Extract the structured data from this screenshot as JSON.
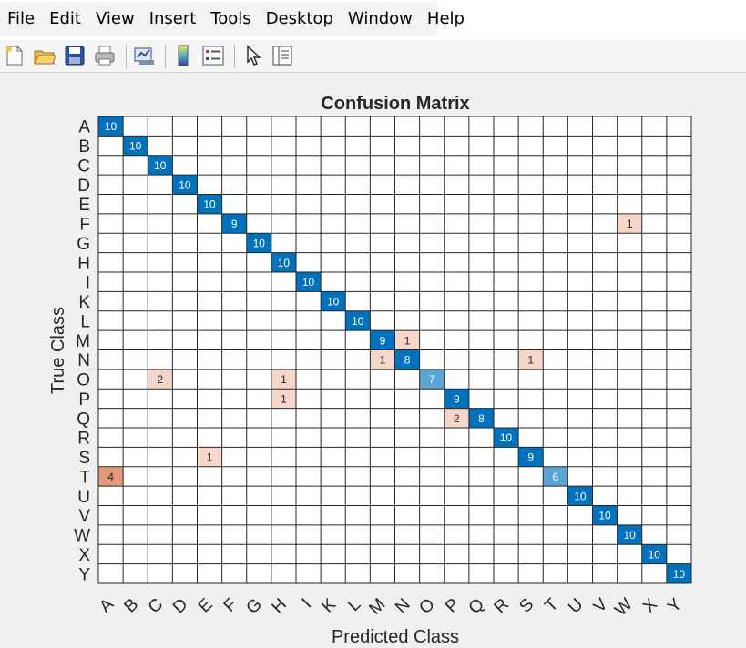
{
  "menu": [
    "File",
    "Edit",
    "View",
    "Insert",
    "Tools",
    "Desktop",
    "Window",
    "Help"
  ],
  "toolbar": {
    "groups": [
      [
        "new-figure-icon",
        "open-file-icon",
        "save-icon",
        "print-icon"
      ],
      [
        "link-plot-icon"
      ],
      [
        "colorbar-icon",
        "legend-icon"
      ],
      [
        "edit-plot-pointer-icon",
        "property-inspector-icon"
      ]
    ]
  },
  "colors": {
    "diagonal_strong": "#0072bd",
    "diagonal_light": "#5aa5d8",
    "offdiag_light": "#f7d6ca",
    "offdiag_strong": "#e39a78",
    "grid": "#262626"
  },
  "chart_data": {
    "type": "heatmap",
    "title": "Confusion Matrix",
    "xlabel": "Predicted Class",
    "ylabel": "True Class",
    "classes": [
      "A",
      "B",
      "C",
      "D",
      "E",
      "F",
      "G",
      "H",
      "I",
      "K",
      "L",
      "M",
      "N",
      "O",
      "P",
      "Q",
      "R",
      "S",
      "T",
      "U",
      "V",
      "W",
      "X",
      "Y"
    ],
    "cells": [
      {
        "true": "A",
        "pred": "A",
        "value": 10
      },
      {
        "true": "B",
        "pred": "B",
        "value": 10
      },
      {
        "true": "C",
        "pred": "C",
        "value": 10
      },
      {
        "true": "D",
        "pred": "D",
        "value": 10
      },
      {
        "true": "E",
        "pred": "E",
        "value": 10
      },
      {
        "true": "F",
        "pred": "F",
        "value": 9
      },
      {
        "true": "F",
        "pred": "W",
        "value": 1
      },
      {
        "true": "G",
        "pred": "G",
        "value": 10
      },
      {
        "true": "H",
        "pred": "H",
        "value": 10
      },
      {
        "true": "I",
        "pred": "I",
        "value": 10
      },
      {
        "true": "K",
        "pred": "K",
        "value": 10
      },
      {
        "true": "L",
        "pred": "L",
        "value": 10
      },
      {
        "true": "M",
        "pred": "M",
        "value": 9
      },
      {
        "true": "M",
        "pred": "N",
        "value": 1
      },
      {
        "true": "N",
        "pred": "M",
        "value": 1
      },
      {
        "true": "N",
        "pred": "N",
        "value": 8
      },
      {
        "true": "N",
        "pred": "S",
        "value": 1
      },
      {
        "true": "O",
        "pred": "C",
        "value": 2
      },
      {
        "true": "O",
        "pred": "H",
        "value": 1
      },
      {
        "true": "O",
        "pred": "O",
        "value": 7
      },
      {
        "true": "P",
        "pred": "H",
        "value": 1
      },
      {
        "true": "P",
        "pred": "P",
        "value": 9
      },
      {
        "true": "Q",
        "pred": "P",
        "value": 2
      },
      {
        "true": "Q",
        "pred": "Q",
        "value": 8
      },
      {
        "true": "R",
        "pred": "R",
        "value": 10
      },
      {
        "true": "S",
        "pred": "E",
        "value": 1
      },
      {
        "true": "S",
        "pred": "S",
        "value": 9
      },
      {
        "true": "T",
        "pred": "A",
        "value": 4
      },
      {
        "true": "T",
        "pred": "T",
        "value": 6
      },
      {
        "true": "U",
        "pred": "U",
        "value": 10
      },
      {
        "true": "V",
        "pred": "V",
        "value": 10
      },
      {
        "true": "W",
        "pred": "W",
        "value": 10
      },
      {
        "true": "X",
        "pred": "X",
        "value": 10
      },
      {
        "true": "Y",
        "pred": "Y",
        "value": 10
      }
    ]
  }
}
